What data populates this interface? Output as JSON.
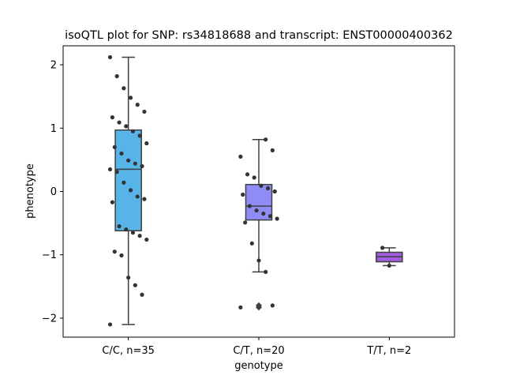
{
  "chart_data": {
    "type": "box",
    "title": "isoQTL plot for SNP: rs34818688 and transcript: ENST00000400362",
    "xlabel": "genotype",
    "ylabel": "phenotype",
    "ylim": [
      -2.3,
      2.3
    ],
    "yticks": [
      2,
      1,
      0,
      -1,
      -2
    ],
    "ytick_labels": [
      "2",
      "1",
      "0",
      "−1",
      "−2"
    ],
    "grid": false,
    "categories": [
      "C/C, n=35",
      "C/T, n=20",
      "T/T, n=2"
    ],
    "colors": [
      "#56b4e9",
      "#8f8cf5",
      "#a05cde"
    ],
    "point_color": "#333333",
    "boxes": [
      {
        "category": "C/C, n=35",
        "min": -2.1,
        "q1": -0.62,
        "median": 0.35,
        "q3": 0.97,
        "max": 2.12,
        "outliers": []
      },
      {
        "category": "C/T, n=20",
        "min": -1.27,
        "q1": -0.45,
        "median": -0.23,
        "q3": 0.11,
        "max": 0.82,
        "outliers": [
          -1.8,
          -1.83
        ]
      },
      {
        "category": "T/T, n=2",
        "min": -1.17,
        "q1": -1.11,
        "median": -1.03,
        "q3": -0.96,
        "max": -0.89,
        "outliers": []
      }
    ],
    "points": [
      {
        "category": "C/C, n=35",
        "values": [
          2.12,
          1.82,
          1.63,
          1.48,
          1.37,
          1.26,
          1.17,
          1.09,
          1.03,
          0.95,
          0.88,
          0.76,
          0.7,
          0.6,
          0.49,
          0.44,
          0.4,
          0.35,
          0.31,
          0.14,
          0.02,
          -0.08,
          -0.12,
          -0.17,
          -0.55,
          -0.6,
          -0.65,
          -0.7,
          -0.76,
          -0.95,
          -1.01,
          -1.36,
          -1.48,
          -1.63,
          -2.1
        ]
      },
      {
        "category": "C/T, n=20",
        "values": [
          0.82,
          0.65,
          0.55,
          0.27,
          0.22,
          0.09,
          0.05,
          0.0,
          -0.05,
          -0.23,
          -0.3,
          -0.35,
          -0.39,
          -0.43,
          -0.49,
          -0.82,
          -1.09,
          -1.27,
          -1.8,
          -1.83
        ]
      },
      {
        "category": "T/T, n=2",
        "values": [
          -0.89,
          -1.17
        ]
      }
    ]
  }
}
